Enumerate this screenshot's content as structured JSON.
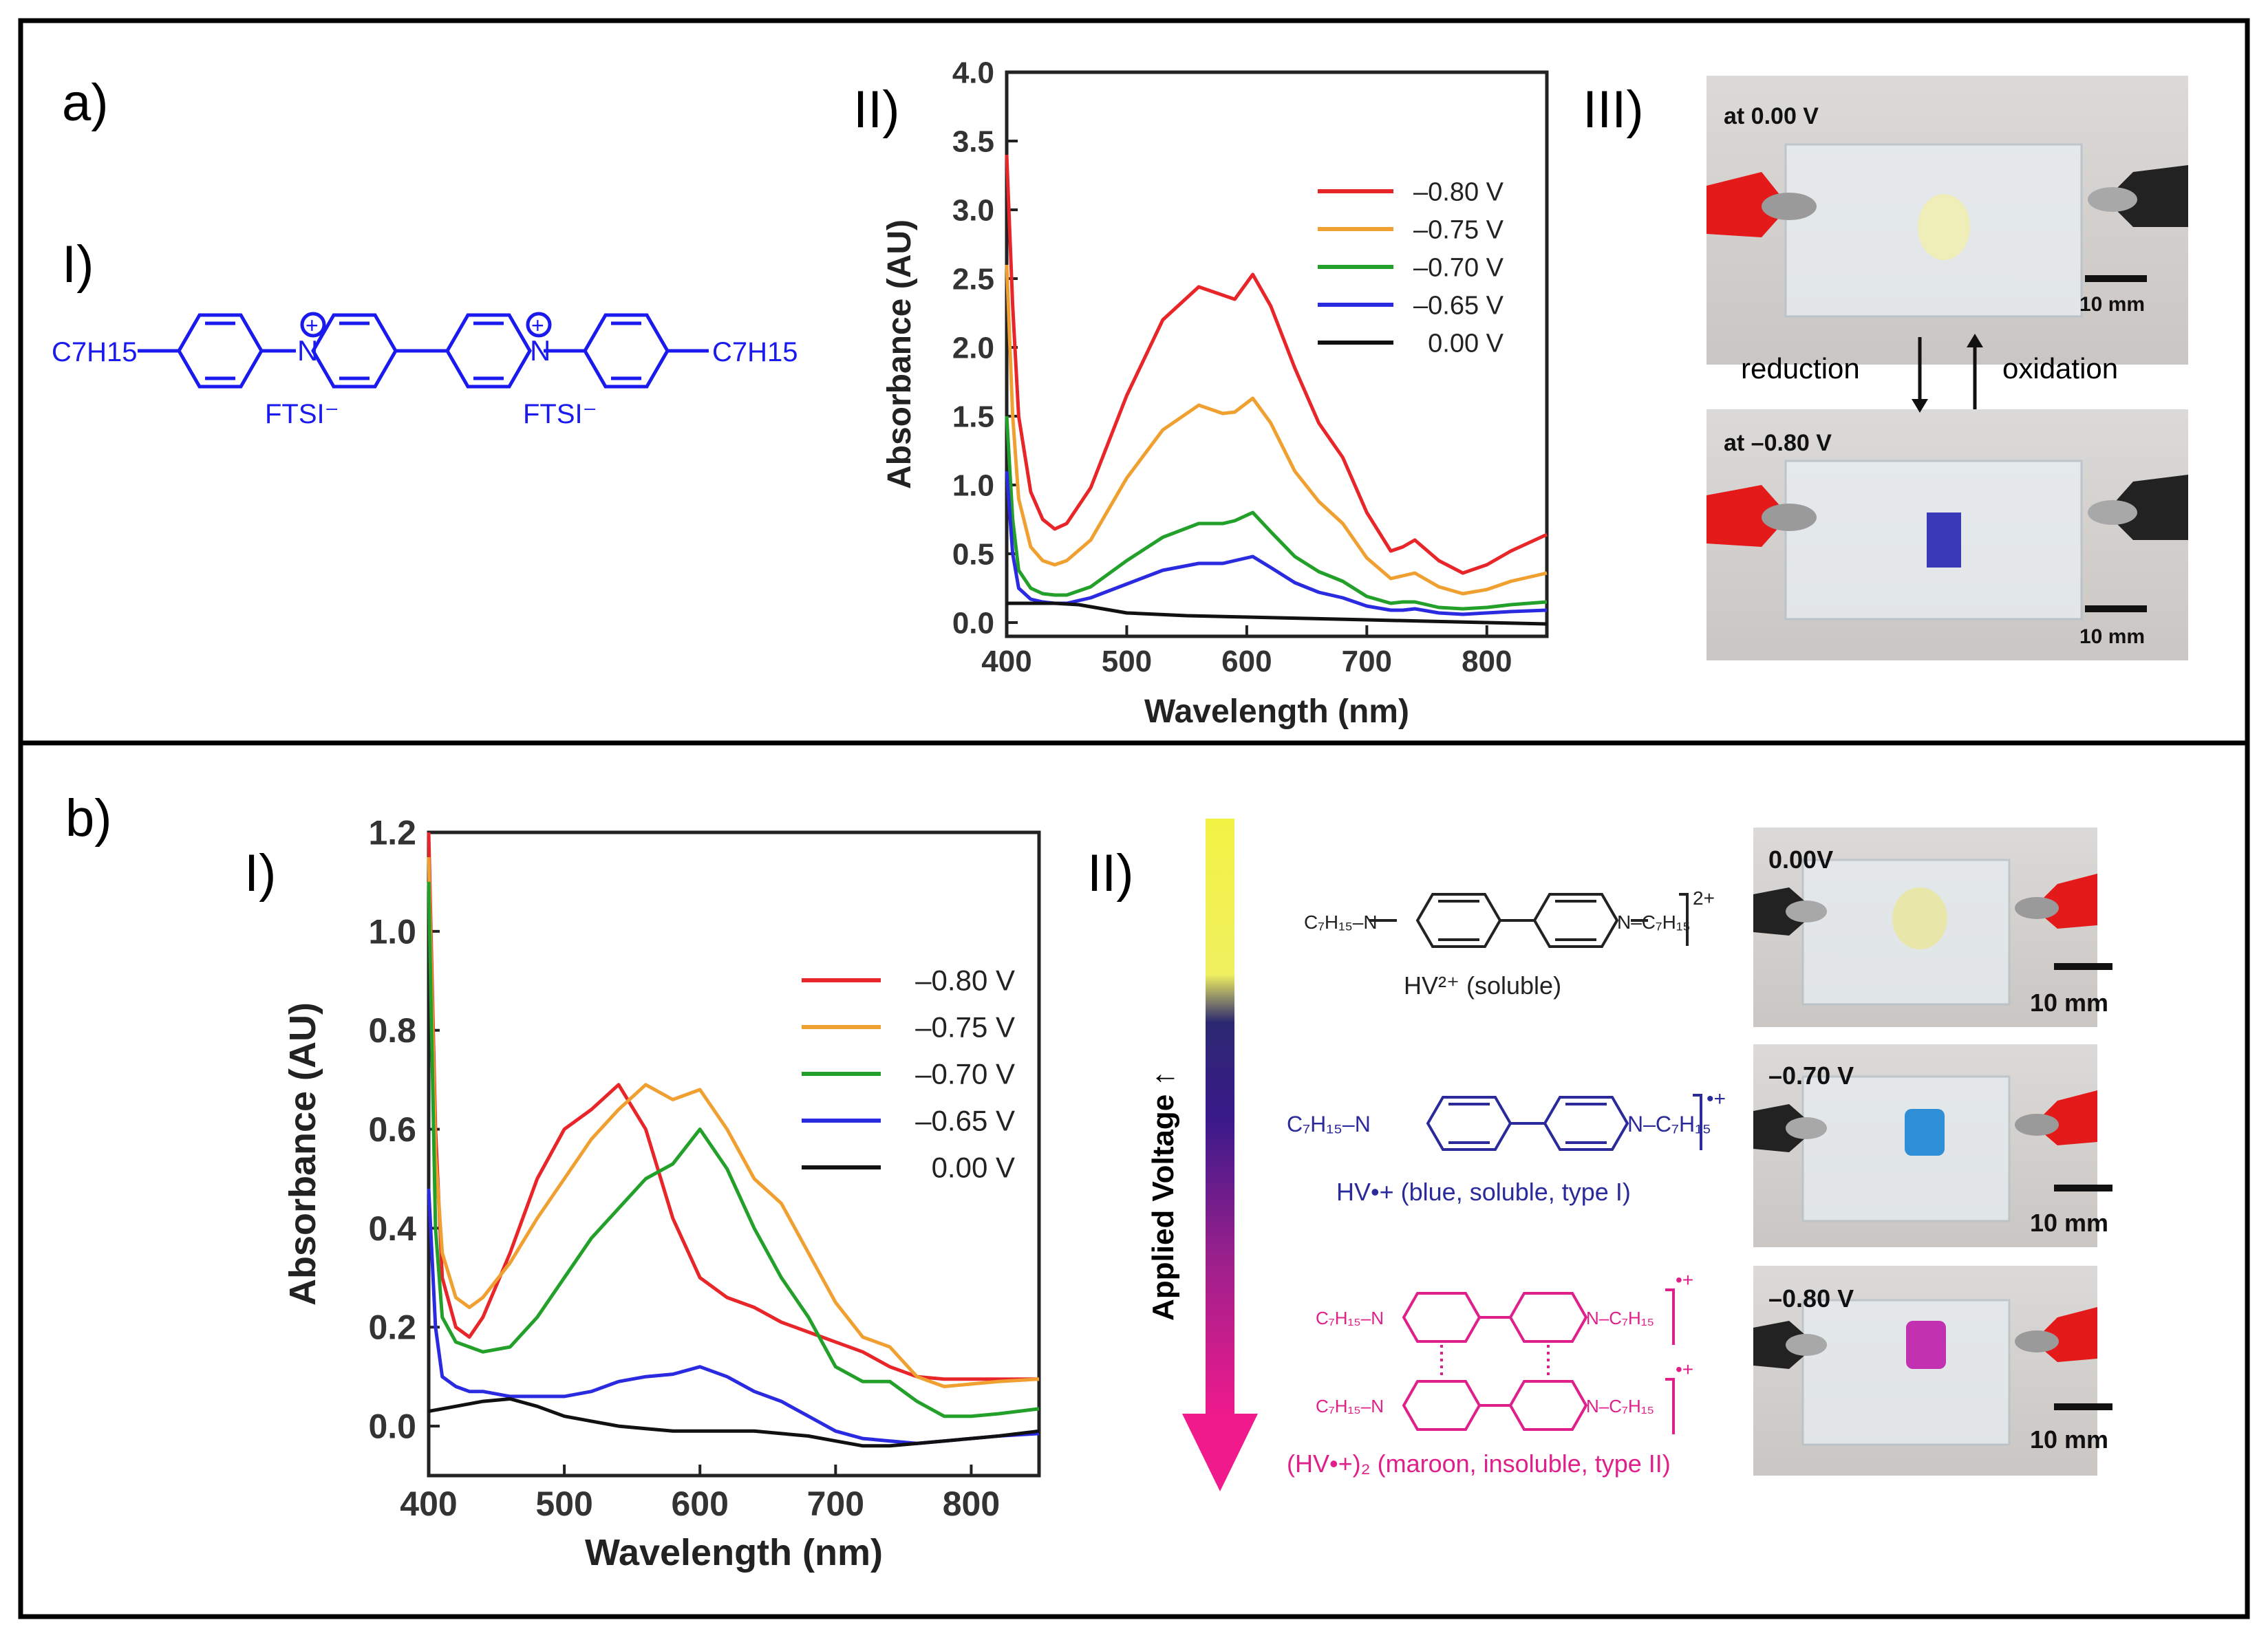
{
  "panels": {
    "a": {
      "label": "a)",
      "sub_I": "I)",
      "sub_II": "II)",
      "sub_III": "III)",
      "molecule": {
        "left_group": "C7H15",
        "right_group": "C7H15",
        "counter_ion_left": "FTSI⁻",
        "counter_ion_right": "FTSI⁻",
        "charge": "+",
        "atom_N": "N"
      },
      "photos": {
        "top_label": "at 0.00 V",
        "bottom_label": "at –0.80 V",
        "scale_bar": "10 mm",
        "arrow_down_label": "reduction",
        "arrow_up_label": "oxidation"
      }
    },
    "b": {
      "label": "b)",
      "sub_I": "I)",
      "sub_II": "II)",
      "gradient_label": "Applied Voltage ↑",
      "species": [
        {
          "name": "HV²⁺ (soluble)",
          "charge": "2+",
          "color": "#222222"
        },
        {
          "name": "HV•+ (blue, soluble, type I)",
          "charge": "•+",
          "color": "#2a2a9a"
        },
        {
          "name": "(HV•+)₂ (maroon, insoluble, type II)",
          "charge": "•+",
          "color": "#e0208a"
        }
      ],
      "photos": [
        {
          "label": "0.00V",
          "scale_bar": "10 mm",
          "sample_color": "#e8e6a8"
        },
        {
          "label": "–0.70 V",
          "scale_bar": "10 mm",
          "sample_color": "#2e8fd6"
        },
        {
          "label": "–0.80 V",
          "scale_bar": "10 mm",
          "sample_color": "#c232b0"
        }
      ]
    }
  },
  "chart_data": [
    {
      "id": "a-II",
      "type": "line",
      "title": "",
      "xlabel": "Wavelength (nm)",
      "ylabel": "Absorbance (AU)",
      "xlim": [
        400,
        850
      ],
      "ylim": [
        -0.1,
        4.0
      ],
      "xticks": [
        400,
        500,
        600,
        700,
        800
      ],
      "yticks": [
        "0.0",
        "0.5",
        "1.0",
        "1.5",
        "2.0",
        "2.5",
        "3.0",
        "3.5",
        "4.0"
      ],
      "yticks_values": [
        0,
        0.5,
        1.0,
        1.5,
        2.0,
        2.5,
        3.0,
        3.5,
        4.0
      ],
      "legend_position": "top-right",
      "series": [
        {
          "name": "–0.80 V",
          "color": "#e8262a",
          "x": [
            400,
            405,
            410,
            420,
            430,
            440,
            450,
            470,
            500,
            530,
            560,
            580,
            590,
            605,
            620,
            640,
            660,
            680,
            700,
            720,
            730,
            740,
            760,
            780,
            800,
            820,
            850
          ],
          "y": [
            3.4,
            2.3,
            1.5,
            0.95,
            0.75,
            0.68,
            0.72,
            0.98,
            1.65,
            2.2,
            2.44,
            2.38,
            2.35,
            2.53,
            2.3,
            1.85,
            1.45,
            1.2,
            0.8,
            0.52,
            0.55,
            0.6,
            0.45,
            0.36,
            0.42,
            0.52,
            0.64
          ]
        },
        {
          "name": "–0.75 V",
          "color": "#f0a030",
          "x": [
            400,
            405,
            410,
            420,
            430,
            440,
            450,
            470,
            500,
            530,
            560,
            580,
            590,
            605,
            620,
            640,
            660,
            680,
            700,
            720,
            730,
            740,
            760,
            780,
            800,
            820,
            850
          ],
          "y": [
            2.6,
            1.5,
            0.9,
            0.55,
            0.45,
            0.42,
            0.45,
            0.6,
            1.05,
            1.4,
            1.58,
            1.52,
            1.53,
            1.63,
            1.45,
            1.1,
            0.88,
            0.72,
            0.47,
            0.32,
            0.34,
            0.36,
            0.26,
            0.21,
            0.24,
            0.3,
            0.36
          ]
        },
        {
          "name": "–0.70 V",
          "color": "#22a02a",
          "x": [
            400,
            405,
            410,
            420,
            430,
            440,
            450,
            470,
            500,
            530,
            560,
            580,
            590,
            605,
            620,
            640,
            660,
            680,
            700,
            720,
            730,
            740,
            760,
            780,
            800,
            820,
            850
          ],
          "y": [
            1.5,
            0.75,
            0.38,
            0.25,
            0.21,
            0.2,
            0.2,
            0.26,
            0.45,
            0.62,
            0.72,
            0.72,
            0.74,
            0.8,
            0.66,
            0.48,
            0.37,
            0.3,
            0.19,
            0.14,
            0.15,
            0.15,
            0.11,
            0.1,
            0.11,
            0.13,
            0.15
          ]
        },
        {
          "name": "–0.65 V",
          "color": "#2a2ae0",
          "x": [
            400,
            405,
            410,
            420,
            430,
            440,
            450,
            470,
            500,
            530,
            560,
            580,
            590,
            605,
            620,
            640,
            660,
            680,
            700,
            720,
            730,
            740,
            760,
            780,
            800,
            820,
            850
          ],
          "y": [
            1.1,
            0.5,
            0.25,
            0.17,
            0.15,
            0.14,
            0.14,
            0.18,
            0.28,
            0.38,
            0.43,
            0.43,
            0.45,
            0.48,
            0.4,
            0.29,
            0.22,
            0.18,
            0.12,
            0.09,
            0.09,
            0.1,
            0.07,
            0.06,
            0.07,
            0.08,
            0.09
          ]
        },
        {
          "name": "0.00 V",
          "color": "#111111",
          "x": [
            400,
            420,
            440,
            460,
            480,
            500,
            550,
            600,
            650,
            700,
            750,
            800,
            850
          ],
          "y": [
            0.14,
            0.14,
            0.14,
            0.13,
            0.1,
            0.07,
            0.05,
            0.04,
            0.03,
            0.02,
            0.01,
            0.0,
            -0.01
          ]
        }
      ]
    },
    {
      "id": "b-I",
      "type": "line",
      "title": "",
      "xlabel": "Wavelength (nm)",
      "ylabel": "Absorbance (AU)",
      "xlim": [
        400,
        850
      ],
      "ylim": [
        -0.1,
        1.2
      ],
      "xticks": [
        400,
        500,
        600,
        700,
        800
      ],
      "yticks": [
        "0.0",
        "0.2",
        "0.4",
        "0.6",
        "0.8",
        "1.0",
        "1.2"
      ],
      "yticks_values": [
        0,
        0.2,
        0.4,
        0.6,
        0.8,
        1.0,
        1.2
      ],
      "legend_position": "center-right",
      "series": [
        {
          "name": "–0.80 V",
          "color": "#e8262a",
          "x": [
            400,
            405,
            410,
            420,
            430,
            440,
            460,
            480,
            500,
            520,
            540,
            560,
            580,
            600,
            620,
            640,
            660,
            680,
            700,
            720,
            740,
            760,
            780,
            800,
            820,
            850
          ],
          "y": [
            1.2,
            0.6,
            0.3,
            0.2,
            0.18,
            0.22,
            0.35,
            0.5,
            0.6,
            0.64,
            0.69,
            0.6,
            0.42,
            0.3,
            0.26,
            0.24,
            0.21,
            0.19,
            0.17,
            0.15,
            0.12,
            0.1,
            0.095,
            0.095,
            0.095,
            0.095
          ]
        },
        {
          "name": "–0.75 V",
          "color": "#f0a030",
          "x": [
            400,
            405,
            410,
            420,
            430,
            440,
            460,
            480,
            500,
            520,
            540,
            560,
            580,
            600,
            620,
            640,
            660,
            680,
            700,
            720,
            740,
            760,
            780,
            800,
            820,
            850
          ],
          "y": [
            1.15,
            0.55,
            0.35,
            0.26,
            0.24,
            0.26,
            0.33,
            0.42,
            0.5,
            0.58,
            0.64,
            0.69,
            0.66,
            0.68,
            0.6,
            0.5,
            0.45,
            0.35,
            0.25,
            0.18,
            0.16,
            0.1,
            0.08,
            0.085,
            0.09,
            0.095
          ]
        },
        {
          "name": "–0.70 V",
          "color": "#22a02a",
          "x": [
            400,
            405,
            410,
            420,
            430,
            440,
            460,
            480,
            500,
            520,
            540,
            560,
            580,
            600,
            620,
            640,
            660,
            680,
            700,
            720,
            740,
            760,
            780,
            800,
            820,
            850
          ],
          "y": [
            1.1,
            0.4,
            0.22,
            0.17,
            0.16,
            0.15,
            0.16,
            0.22,
            0.3,
            0.38,
            0.44,
            0.5,
            0.53,
            0.6,
            0.52,
            0.4,
            0.3,
            0.22,
            0.12,
            0.09,
            0.09,
            0.05,
            0.02,
            0.02,
            0.025,
            0.035
          ]
        },
        {
          "name": "–0.65 V",
          "color": "#2a2ae0",
          "x": [
            400,
            405,
            410,
            420,
            430,
            440,
            460,
            480,
            500,
            520,
            540,
            560,
            580,
            600,
            620,
            640,
            660,
            680,
            700,
            720,
            740,
            760,
            780,
            800,
            820,
            850
          ],
          "y": [
            0.48,
            0.2,
            0.1,
            0.08,
            0.07,
            0.07,
            0.06,
            0.06,
            0.06,
            0.07,
            0.09,
            0.1,
            0.105,
            0.12,
            0.1,
            0.07,
            0.05,
            0.02,
            -0.01,
            -0.025,
            -0.03,
            -0.035,
            -0.03,
            -0.025,
            -0.02,
            -0.015
          ]
        },
        {
          "name": "0.00 V",
          "color": "#111111",
          "x": [
            400,
            420,
            440,
            460,
            480,
            500,
            520,
            540,
            560,
            580,
            600,
            620,
            640,
            660,
            680,
            700,
            720,
            740,
            760,
            780,
            800,
            820,
            850
          ],
          "y": [
            0.03,
            0.04,
            0.05,
            0.055,
            0.04,
            0.02,
            0.01,
            0.0,
            -0.005,
            -0.01,
            -0.01,
            -0.01,
            -0.01,
            -0.015,
            -0.02,
            -0.03,
            -0.04,
            -0.04,
            -0.035,
            -0.03,
            -0.025,
            -0.02,
            -0.01
          ]
        }
      ]
    }
  ]
}
